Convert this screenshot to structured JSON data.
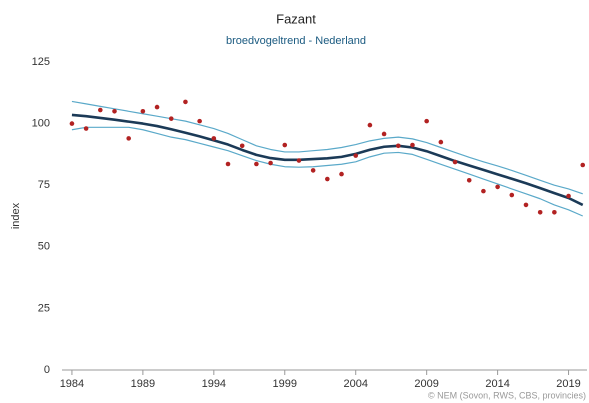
{
  "chart_data": {
    "type": "line",
    "title": "Fazant",
    "subtitle": "broedvogeltrend - Nederland",
    "ylabel": "index",
    "credit": "© NEM (Sovon, RWS, CBS, provincies)",
    "x": [
      1984,
      1985,
      1986,
      1987,
      1988,
      1989,
      1990,
      1991,
      1992,
      1993,
      1994,
      1995,
      1996,
      1997,
      1998,
      1999,
      2000,
      2001,
      2002,
      2003,
      2004,
      2005,
      2006,
      2007,
      2008,
      2009,
      2010,
      2011,
      2012,
      2013,
      2014,
      2015,
      2016,
      2017,
      2018,
      2019,
      2020
    ],
    "xlim": [
      1983.3,
      2020.3
    ],
    "xticks": [
      1984,
      1989,
      1994,
      1999,
      2004,
      2009,
      2014,
      2019
    ],
    "ylim": [
      0,
      125
    ],
    "yticks": [
      0,
      25,
      50,
      75,
      100,
      125
    ],
    "grid": false,
    "series": [
      {
        "type": "line",
        "color": "#5aa9c9",
        "width": 1.2,
        "values": [
          109,
          108,
          107,
          106,
          105,
          104,
          103,
          102,
          101,
          99.5,
          98,
          96,
          93.5,
          91,
          89.5,
          88.5,
          88.5,
          89,
          89.5,
          90.3,
          91.5,
          93,
          94,
          94.5,
          93.8,
          92.3,
          90.3,
          88.3,
          86.3,
          84.5,
          82.8,
          81,
          79,
          77,
          75,
          73.5,
          71.5
        ]
      },
      {
        "type": "line",
        "color": "#5aa9c9",
        "width": 1.2,
        "values": [
          97.5,
          98.5,
          98.5,
          98.5,
          98.5,
          97.5,
          96,
          94.5,
          93.5,
          92,
          90.5,
          89,
          87,
          85,
          83.5,
          82.5,
          82.3,
          82.5,
          83,
          83.5,
          84.5,
          86.5,
          88,
          88.3,
          87.5,
          85.5,
          83.5,
          81.5,
          79.5,
          77.5,
          75.5,
          73.5,
          71.5,
          69.5,
          67,
          65,
          62.5
        ]
      },
      {
        "type": "line",
        "color": "#1b3a57",
        "width": 2.6,
        "values": [
          103.5,
          103,
          102.3,
          101.6,
          100.8,
          100,
          99,
          97.7,
          96.3,
          94.8,
          93.2,
          91.5,
          89.3,
          87.3,
          86,
          85.3,
          85.3,
          85.6,
          85.9,
          86.5,
          87.7,
          89.4,
          90.6,
          91,
          90.3,
          88.8,
          86.8,
          84.8,
          83,
          81.2,
          79.4,
          77.6,
          75.8,
          73.8,
          71.8,
          69.8,
          67
        ]
      },
      {
        "type": "scatter",
        "color": "#b22222",
        "values": [
          100,
          98,
          105.5,
          105,
          94,
          105,
          106.7,
          102,
          108.8,
          101,
          94,
          83.6,
          91,
          83.6,
          84,
          91.3,
          85,
          81,
          77.5,
          79.5,
          87,
          99.4,
          95.8,
          91,
          91.3,
          101,
          92.5,
          84.4,
          77,
          72.6,
          74.3,
          71,
          67,
          64,
          64,
          70.6,
          83.2
        ]
      }
    ]
  }
}
